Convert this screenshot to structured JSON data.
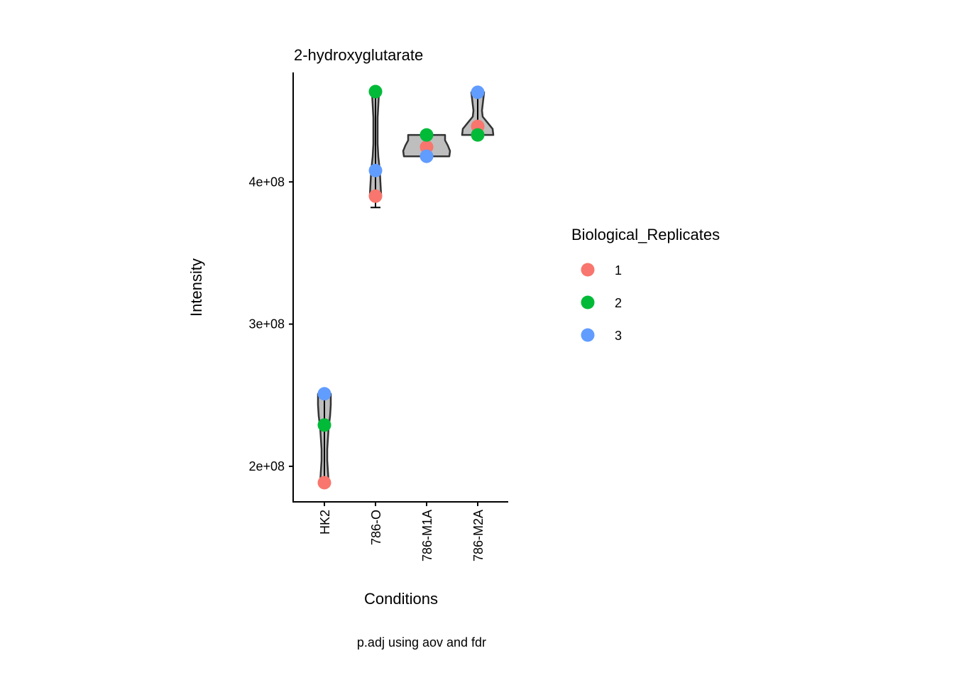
{
  "chart_data": {
    "type": "violin",
    "title": "2-hydroxyglutarate",
    "xlabel": "Conditions",
    "ylabel": "Intensity",
    "caption": "p.adj using  aov and fdr",
    "categories": [
      "HK2",
      "786-O",
      "786-M1A",
      "786-M2A"
    ],
    "ylim": [
      175000000,
      477000000
    ],
    "yticks": [
      200000000,
      300000000,
      400000000
    ],
    "ytick_labels": [
      "2e+08",
      "3e+08",
      "4e+08"
    ],
    "legend": {
      "title": "Biological_Replicates",
      "position": "right",
      "entries": [
        {
          "label": "1",
          "color": "#F8766D"
        },
        {
          "label": "2",
          "color": "#00BA38"
        },
        {
          "label": "3",
          "color": "#619CFF"
        }
      ]
    },
    "series": [
      {
        "name": "1",
        "values": [
          188500000,
          390000000,
          424500000,
          439000000
        ]
      },
      {
        "name": "2",
        "values": [
          229000000,
          463500000,
          433000000,
          433000000
        ]
      },
      {
        "name": "3",
        "values": [
          251000000,
          408000000,
          418000000,
          463000000
        ]
      }
    ],
    "error_bar_min": [
      188500000,
      382000000,
      418000000,
      433000000
    ]
  }
}
